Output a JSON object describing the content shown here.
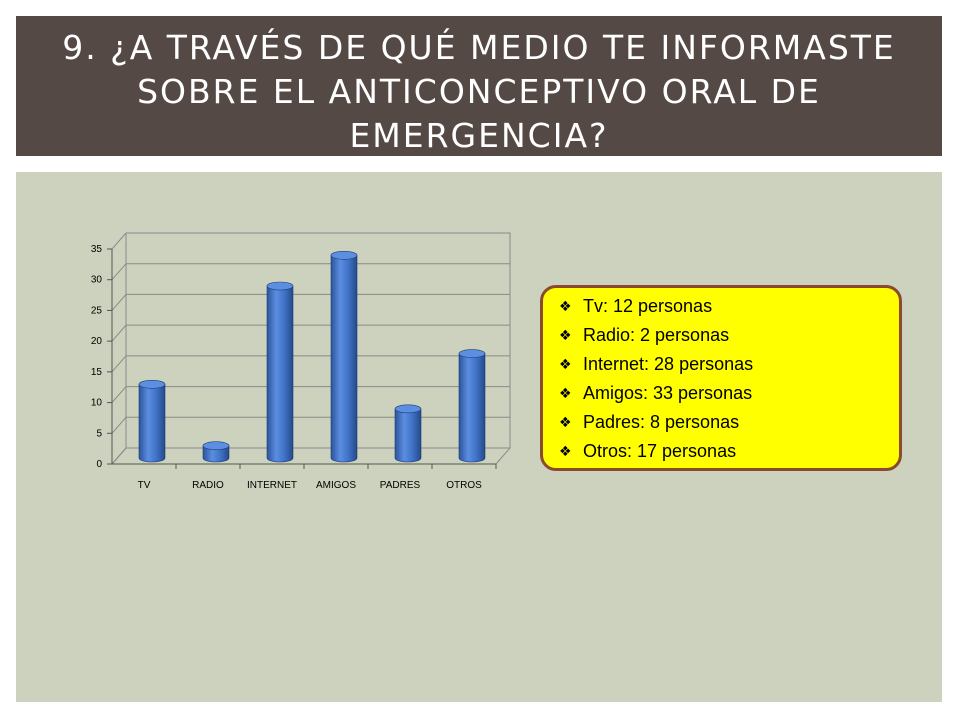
{
  "slide": {
    "title": "9. ¿A través de qué medio te informaste sobre el anticonceptivo oral de emergencia?"
  },
  "legend": {
    "items": [
      {
        "text": "Tv: 12 personas",
        "icon": "diamond-bullet-icon"
      },
      {
        "text": "Radio: 2 personas",
        "icon": "diamond-bullet-icon"
      },
      {
        "text": "Internet: 28 personas",
        "icon": "diamond-bullet-icon"
      },
      {
        "text": "Amigos: 33 personas",
        "icon": "diamond-bullet-icon"
      },
      {
        "text": "Padres: 8 personas",
        "icon": "diamond-bullet-icon"
      },
      {
        "text": "Otros: 17 personas",
        "icon": "diamond-bullet-icon"
      }
    ],
    "background_color": "#ffff00",
    "border_color": "#8b4a2b"
  },
  "chart_data": {
    "type": "bar",
    "categories": [
      "TV",
      "RADIO",
      "INTERNET",
      "AMIGOS",
      "PADRES",
      "OTROS"
    ],
    "values": [
      12,
      2,
      28,
      33,
      8,
      17
    ],
    "yticks": [
      "0",
      "5",
      "10",
      "15",
      "20",
      "25",
      "30",
      "35"
    ],
    "ylim": [
      0,
      35
    ],
    "grid": true,
    "bar_color": "#3d6fc2",
    "title": "",
    "xlabel": "",
    "ylabel": ""
  }
}
